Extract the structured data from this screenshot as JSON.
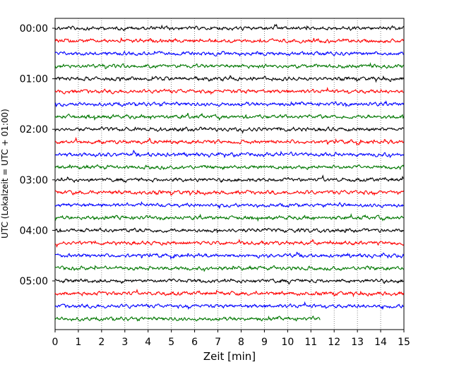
{
  "chart_data": {
    "type": "line",
    "title": "",
    "xlabel": "Zeit  [min]",
    "ylabel": "UTC (Lokalzeit = UTC + 01:00)",
    "xlim": [
      0,
      15
    ],
    "x_ticks": [
      "0",
      "1",
      "2",
      "3",
      "4",
      "5",
      "6",
      "7",
      "8",
      "9",
      "10",
      "11",
      "12",
      "13",
      "14",
      "15"
    ],
    "y_tick_labels": [
      "00:00",
      "01:00",
      "02:00",
      "03:00",
      "04:00",
      "05:00"
    ],
    "grid": "vertical dotted at each minute",
    "trace_interval_minutes": 15,
    "trace_count": 24,
    "trace_colors": [
      "#000000",
      "#ff0000",
      "#0000ff",
      "#007700"
    ],
    "last_trace_end_minute": 11.4
  }
}
